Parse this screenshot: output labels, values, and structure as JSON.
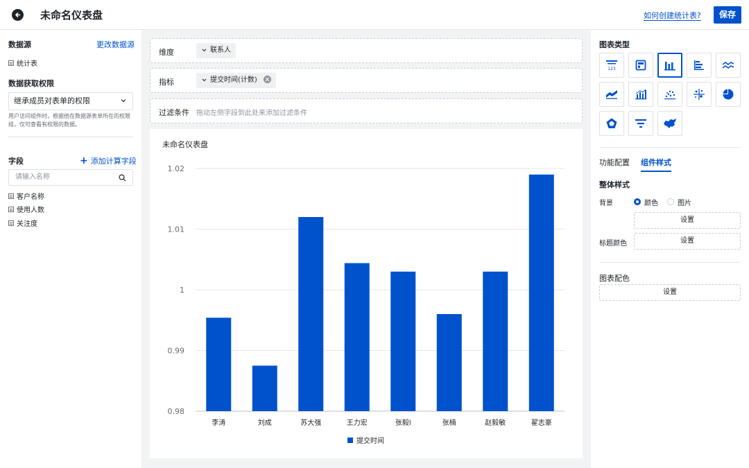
{
  "header": {
    "title": "未命名仪表盘",
    "help_link": "如何创建统计表?",
    "save_label": "保存"
  },
  "left": {
    "datasource_label": "数据源",
    "change_datasource": "更改数据源",
    "datasource_name": "统计表",
    "permission_label": "数据获取权限",
    "permission_value": "继承成员对表单的权限",
    "permission_hint": "用户访问组件时，根据他在数据源表单所在的权限组，仅可查看有权限的数据。",
    "fields_label": "字段",
    "add_field": "添加计算字段",
    "search_placeholder": "请输入名称",
    "fields": [
      "客户名称",
      "使用人数",
      "关注度"
    ]
  },
  "config": {
    "dimension_label": "维度",
    "dimension_value": "联系人",
    "metric_label": "指标",
    "metric_value": "提交时间(计数)",
    "filter_label": "过滤条件",
    "filter_placeholder": "拖动左侧字段到此处来添加过滤条件"
  },
  "chart_data": {
    "type": "bar",
    "title": "未命名仪表盘",
    "categories": [
      "李涛",
      "刘成",
      "苏大强",
      "王力宏",
      "张毅l",
      "张楠",
      "赵毅敏",
      "翟志豪"
    ],
    "series": [
      {
        "name": "提交时间",
        "values": [
          0.9954,
          0.9875,
          1.012,
          1.0044,
          1.003,
          0.996,
          1.003,
          1.019
        ]
      }
    ],
    "ylim": [
      0.98,
      1.02
    ],
    "yticks": [
      0.98,
      0.99,
      1,
      1.01,
      1.02
    ],
    "ytick_labels": [
      "0.98",
      "0.99",
      "1",
      "1.01",
      "1.02"
    ],
    "grid": true,
    "legend_position": "bottom-center",
    "color": "#0052cc"
  },
  "right": {
    "chart_types_label": "图表类型",
    "chart_types": [
      "number-card-icon",
      "table-icon",
      "column-chart-icon",
      "bar-chart-icon",
      "line-chart-icon",
      "area-chart-icon",
      "combo-chart-icon",
      "scatter-chart-icon",
      "bubble-chart-icon",
      "pie-chart-icon",
      "radar-chart-icon",
      "funnel-chart-icon",
      "map-chart-icon"
    ],
    "tabs": [
      "功能配置",
      "组件样式"
    ],
    "overall_style_label": "整体样式",
    "background_label": "背景",
    "bg_option_color": "颜色",
    "bg_option_image": "图片",
    "set_label": "设置",
    "title_color_label": "标题颜色",
    "chart_color_label": "图表配色"
  }
}
